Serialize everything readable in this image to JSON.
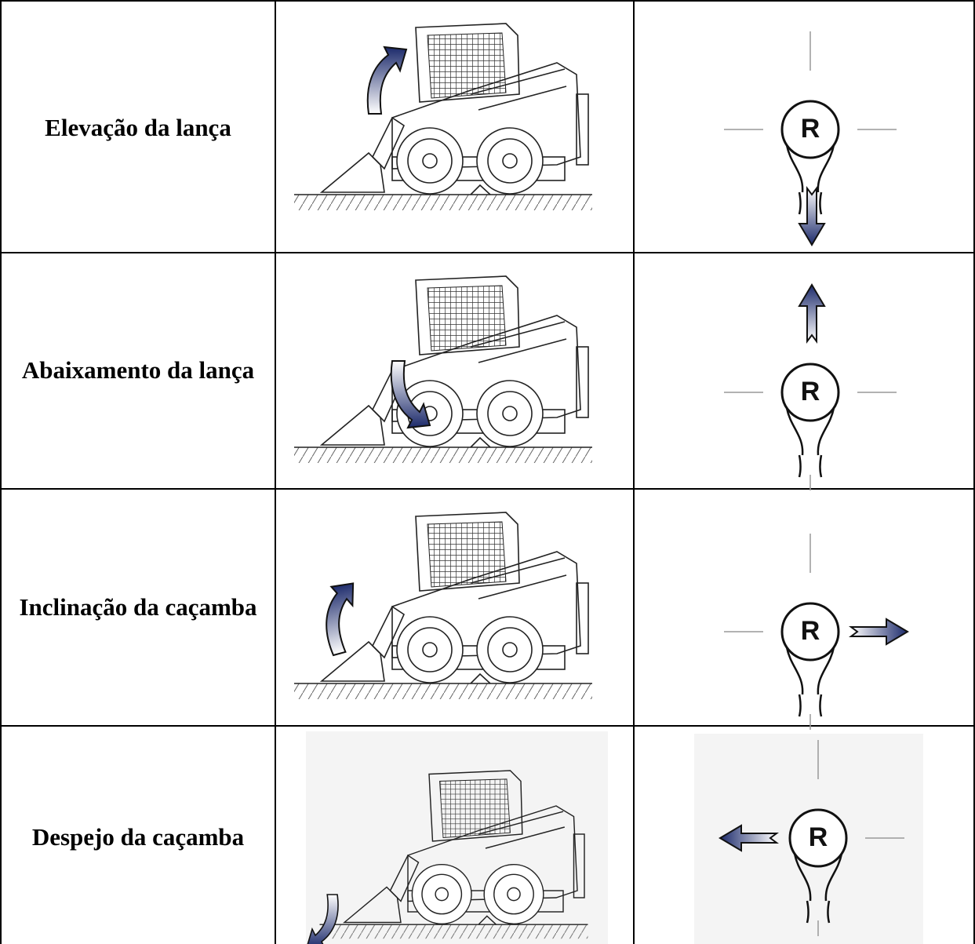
{
  "table": {
    "rows": [
      {
        "label": "Elevação da lança",
        "joystick": "R"
      },
      {
        "label": "Abaixamento da lança",
        "joystick": "R"
      },
      {
        "label": "Inclinação da caçamba",
        "joystick": "R"
      },
      {
        "label": "Despejo da caçamba",
        "joystick": "R"
      }
    ]
  }
}
